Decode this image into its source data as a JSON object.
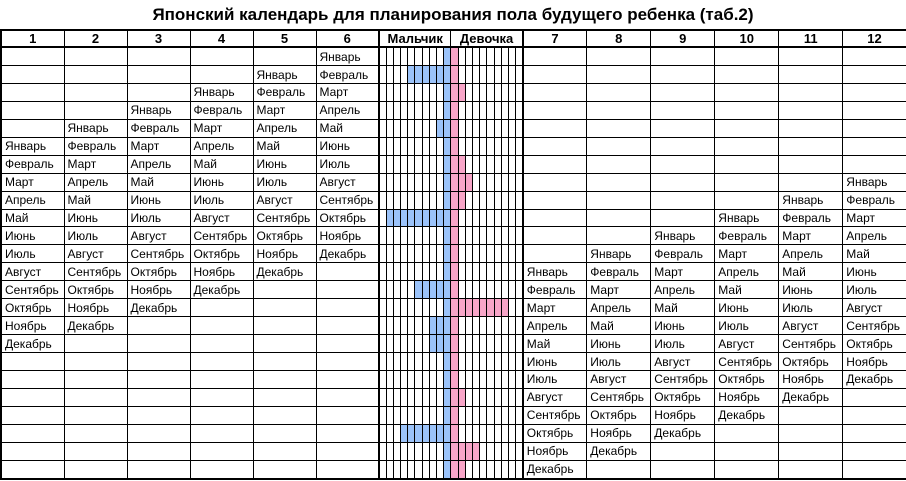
{
  "title": "Японский календарь для планирования пола будущего ребенка (таб.2)",
  "header": {
    "left_cols": [
      "1",
      "2",
      "3",
      "4",
      "5",
      "6"
    ],
    "boy_label": "Мальчик",
    "girl_label": "Девочка",
    "right_cols": [
      "7",
      "8",
      "9",
      "10",
      "11",
      "12"
    ]
  },
  "colors": {
    "boy": "#9bc3fa",
    "girl": "#f8a5c8"
  },
  "chart_data": {
    "type": "table",
    "title": "Японский календарь для планирования пола будущего ребенка (таб.2)",
    "legend": "голубой = Мальчик (boy probability bar), розовый = Девочка (girl probability bar)",
    "stripe_columns_per_side": 10,
    "months": [
      "Январь",
      "Февраль",
      "Март",
      "Апрель",
      "Май",
      "Июнь",
      "Июль",
      "Август",
      "Сентябрь",
      "Октябрь",
      "Ноябрь",
      "Декабрь"
    ],
    "rows": [
      {
        "left": [
          "",
          "",
          "",
          "",
          "",
          "Январь"
        ],
        "boy": 1,
        "girl": 1,
        "right": [
          "",
          "",
          "",
          "",
          "",
          ""
        ]
      },
      {
        "left": [
          "",
          "",
          "",
          "",
          "Январь",
          "Февраль"
        ],
        "boy": 6,
        "girl": 1,
        "right": [
          "",
          "",
          "",
          "",
          "",
          ""
        ]
      },
      {
        "left": [
          "",
          "",
          "",
          "Январь",
          "Февраль",
          "Март"
        ],
        "boy": 1,
        "girl": 2,
        "right": [
          "",
          "",
          "",
          "",
          "",
          ""
        ]
      },
      {
        "left": [
          "",
          "",
          "Январь",
          "Февраль",
          "Март",
          "Апрель"
        ],
        "boy": 1,
        "girl": 1,
        "right": [
          "",
          "",
          "",
          "",
          "",
          ""
        ]
      },
      {
        "left": [
          "",
          "Январь",
          "Февраль",
          "Март",
          "Апрель",
          "Май"
        ],
        "boy": 2,
        "girl": 1,
        "right": [
          "",
          "",
          "",
          "",
          "",
          ""
        ]
      },
      {
        "left": [
          "Январь",
          "Февраль",
          "Март",
          "Апрель",
          "Май",
          "Июнь"
        ],
        "boy": 1,
        "girl": 1,
        "right": [
          "",
          "",
          "",
          "",
          "",
          ""
        ]
      },
      {
        "left": [
          "Февраль",
          "Март",
          "Апрель",
          "Май",
          "Июнь",
          "Июль"
        ],
        "boy": 1,
        "girl": 2,
        "right": [
          "",
          "",
          "",
          "",
          "",
          ""
        ]
      },
      {
        "left": [
          "Март",
          "Апрель",
          "Май",
          "Июнь",
          "Июль",
          "Август"
        ],
        "boy": 1,
        "girl": 3,
        "right": [
          "",
          "",
          "",
          "",
          "",
          "Январь"
        ]
      },
      {
        "left": [
          "Апрель",
          "Май",
          "Июнь",
          "Июль",
          "Август",
          "Сентябрь"
        ],
        "boy": 1,
        "girl": 2,
        "right": [
          "",
          "",
          "",
          "",
          "Январь",
          "Февраль"
        ]
      },
      {
        "left": [
          "Май",
          "Июнь",
          "Июль",
          "Август",
          "Сентябрь",
          "Октябрь"
        ],
        "boy": 9,
        "girl": 1,
        "right": [
          "",
          "",
          "",
          "Январь",
          "Февраль",
          "Март"
        ]
      },
      {
        "left": [
          "Июнь",
          "Июль",
          "Август",
          "Сентябрь",
          "Октябрь",
          "Ноябрь"
        ],
        "boy": 1,
        "girl": 1,
        "right": [
          "",
          "",
          "Январь",
          "Февраль",
          "Март",
          "Апрель"
        ]
      },
      {
        "left": [
          "Июль",
          "Август",
          "Сентябрь",
          "Октябрь",
          "Ноябрь",
          "Декабрь"
        ],
        "boy": 1,
        "girl": 1,
        "right": [
          "",
          "Январь",
          "Февраль",
          "Март",
          "Апрель",
          "Май"
        ]
      },
      {
        "left": [
          "Август",
          "Сентябрь",
          "Октябрь",
          "Ноябрь",
          "Декабрь",
          ""
        ],
        "boy": 1,
        "girl": 1,
        "right": [
          "Январь",
          "Февраль",
          "Март",
          "Апрель",
          "Май",
          "Июнь"
        ]
      },
      {
        "left": [
          "Сентябрь",
          "Октябрь",
          "Ноябрь",
          "Декабрь",
          "",
          ""
        ],
        "boy": 5,
        "girl": 1,
        "right": [
          "Февраль",
          "Март",
          "Апрель",
          "Май",
          "Июнь",
          "Июль"
        ]
      },
      {
        "left": [
          "Октябрь",
          "Ноябрь",
          "Декабрь",
          "",
          "",
          ""
        ],
        "boy": 1,
        "girl": 8,
        "right": [
          "Март",
          "Апрель",
          "Май",
          "Июнь",
          "Июль",
          "Август"
        ]
      },
      {
        "left": [
          "Ноябрь",
          "Декабрь",
          "",
          "",
          "",
          ""
        ],
        "boy": 3,
        "girl": 1,
        "right": [
          "Апрель",
          "Май",
          "Июнь",
          "Июль",
          "Август",
          "Сентябрь"
        ]
      },
      {
        "left": [
          "Декабрь",
          "",
          "",
          "",
          "",
          ""
        ],
        "boy": 3,
        "girl": 1,
        "right": [
          "Май",
          "Июнь",
          "Июль",
          "Август",
          "Сентябрь",
          "Октябрь"
        ]
      },
      {
        "left": [
          "",
          "",
          "",
          "",
          "",
          ""
        ],
        "boy": 1,
        "girl": 1,
        "right": [
          "Июнь",
          "Июль",
          "Август",
          "Сентябрь",
          "Октябрь",
          "Ноябрь"
        ]
      },
      {
        "left": [
          "",
          "",
          "",
          "",
          "",
          ""
        ],
        "boy": 1,
        "girl": 1,
        "right": [
          "Июль",
          "Август",
          "Сентябрь",
          "Октябрь",
          "Ноябрь",
          "Декабрь"
        ]
      },
      {
        "left": [
          "",
          "",
          "",
          "",
          "",
          ""
        ],
        "boy": 1,
        "girl": 2,
        "right": [
          "Август",
          "Сентябрь",
          "Октябрь",
          "Ноябрь",
          "Декабрь",
          ""
        ]
      },
      {
        "left": [
          "",
          "",
          "",
          "",
          "",
          ""
        ],
        "boy": 1,
        "girl": 1,
        "right": [
          "Сентябрь",
          "Октябрь",
          "Ноябрь",
          "Декабрь",
          "",
          ""
        ]
      },
      {
        "left": [
          "",
          "",
          "",
          "",
          "",
          ""
        ],
        "boy": 7,
        "girl": 1,
        "right": [
          "Октябрь",
          "Ноябрь",
          "Декабрь",
          "",
          "",
          ""
        ]
      },
      {
        "left": [
          "",
          "",
          "",
          "",
          "",
          ""
        ],
        "boy": 1,
        "girl": 4,
        "right": [
          "Ноябрь",
          "Декабрь",
          "",
          "",
          "",
          ""
        ]
      },
      {
        "left": [
          "",
          "",
          "",
          "",
          "",
          ""
        ],
        "boy": 1,
        "girl": 2,
        "right": [
          "Декабрь",
          "",
          "",
          "",
          "",
          ""
        ]
      }
    ]
  }
}
